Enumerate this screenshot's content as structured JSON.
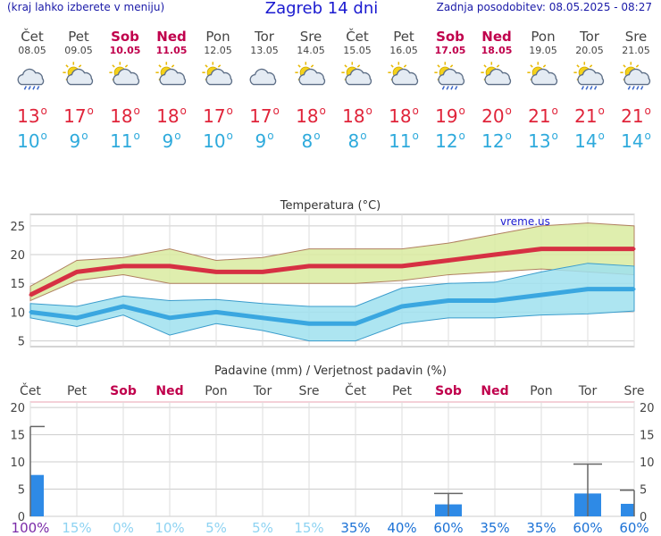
{
  "header": {
    "menu_hint": "(kraj lahko izberete v meniju)",
    "title": "Zagreb 14 dni",
    "updated": "Zadnja posodobitev: 08.05.2025 - 08:27"
  },
  "forecast": [
    {
      "day": "Čet",
      "date": "08.05",
      "weekend": false,
      "icon": "cloud-rain-icon",
      "max": "13",
      "min": "10"
    },
    {
      "day": "Pet",
      "date": "09.05",
      "weekend": false,
      "icon": "sun-cloud-icon",
      "max": "17",
      "min": "9"
    },
    {
      "day": "Sob",
      "date": "10.05",
      "weekend": true,
      "icon": "sun-cloud-icon",
      "max": "18",
      "min": "11"
    },
    {
      "day": "Ned",
      "date": "11.05",
      "weekend": true,
      "icon": "sun-cloud-icon",
      "max": "18",
      "min": "9"
    },
    {
      "day": "Pon",
      "date": "12.05",
      "weekend": false,
      "icon": "sun-cloud-icon",
      "max": "17",
      "min": "10"
    },
    {
      "day": "Tor",
      "date": "13.05",
      "weekend": false,
      "icon": "cloud-icon",
      "max": "17",
      "min": "9"
    },
    {
      "day": "Sre",
      "date": "14.05",
      "weekend": false,
      "icon": "sun-cloud-icon",
      "max": "18",
      "min": "8"
    },
    {
      "day": "Čet",
      "date": "15.05",
      "weekend": false,
      "icon": "sun-cloud-icon",
      "max": "18",
      "min": "8"
    },
    {
      "day": "Pet",
      "date": "16.05",
      "weekend": false,
      "icon": "sun-cloud-icon",
      "max": "18",
      "min": "11"
    },
    {
      "day": "Sob",
      "date": "17.05",
      "weekend": true,
      "icon": "sun-cloud-rain-icon",
      "max": "19",
      "min": "12"
    },
    {
      "day": "Ned",
      "date": "18.05",
      "weekend": true,
      "icon": "sun-cloud-icon",
      "max": "20",
      "min": "12"
    },
    {
      "day": "Pon",
      "date": "19.05",
      "weekend": false,
      "icon": "sun-cloud-icon",
      "max": "21",
      "min": "13"
    },
    {
      "day": "Tor",
      "date": "20.05",
      "weekend": false,
      "icon": "sun-cloud-rain-icon",
      "max": "21",
      "min": "14"
    },
    {
      "day": "Sre",
      "date": "21.05",
      "weekend": false,
      "icon": "sun-cloud-rain-icon",
      "max": "21",
      "min": "14"
    }
  ],
  "colors": {
    "max_line": "#d63043",
    "min_line": "#3aa7e0",
    "max_band": "#d9eba0",
    "min_band": "#9fe1ef",
    "precip_bar": "#2e8ae6",
    "weekend": "#c0004c"
  },
  "chart_data": [
    {
      "type": "line",
      "title": "Temperatura (°C)",
      "watermark": "vreme.us",
      "x": [
        "Čet",
        "Pet",
        "Sob",
        "Ned",
        "Pon",
        "Tor",
        "Sre",
        "Čet",
        "Pet",
        "Sob",
        "Ned",
        "Pon",
        "Tor",
        "Sre"
      ],
      "ylim": [
        4,
        27
      ],
      "yticks": [
        5,
        10,
        15,
        20,
        25
      ],
      "grid": true,
      "series": [
        {
          "role": "max",
          "values": [
            13,
            17,
            18,
            18,
            17,
            17,
            18,
            18,
            18,
            19,
            20,
            21,
            21,
            21
          ]
        },
        {
          "role": "min",
          "values": [
            10,
            9,
            11,
            9,
            10,
            9,
            8,
            8,
            11,
            12,
            12,
            13,
            14,
            14
          ]
        }
      ],
      "max_band": {
        "upper": [
          14.5,
          19,
          19.5,
          21,
          19,
          19.5,
          21,
          21,
          21,
          22,
          23.5,
          25,
          25.5,
          25
        ],
        "lower": [
          12,
          15.5,
          16.5,
          15,
          15,
          15,
          15,
          15,
          15.5,
          16.5,
          17,
          17.5,
          17,
          16.5
        ]
      },
      "min_band": {
        "upper": [
          11.5,
          11,
          12.8,
          12,
          12.2,
          11.5,
          11,
          11,
          14.2,
          15,
          15.2,
          17,
          18.5,
          18
        ],
        "lower": [
          9,
          7.5,
          9.5,
          6,
          8,
          6.8,
          5,
          5,
          8,
          9,
          9,
          9.5,
          9.7,
          10.2
        ]
      }
    },
    {
      "type": "bar",
      "title": "Padavine (mm) / Verjetnost padavin (%)",
      "categories": [
        "Čet",
        "Pet",
        "Sob",
        "Ned",
        "Pon",
        "Tor",
        "Sre",
        "Čet",
        "Pet",
        "Sob",
        "Ned",
        "Pon",
        "Tor",
        "Sre"
      ],
      "ylim": [
        0,
        21
      ],
      "yticks": [
        0,
        5,
        10,
        15,
        20
      ],
      "values": [
        7.6,
        0,
        0,
        0,
        0,
        0,
        0,
        0,
        0,
        2.2,
        0,
        0,
        4.2,
        2.3
      ],
      "error_max": [
        16.5,
        0,
        0,
        0,
        0,
        0,
        0,
        0,
        0,
        4.2,
        0,
        0,
        9.6,
        4.8
      ],
      "probability": [
        "100%",
        "15%",
        "0%",
        "10%",
        "5%",
        "5%",
        "15%",
        "35%",
        "40%",
        "60%",
        "35%",
        "35%",
        "60%",
        "60%"
      ]
    }
  ]
}
